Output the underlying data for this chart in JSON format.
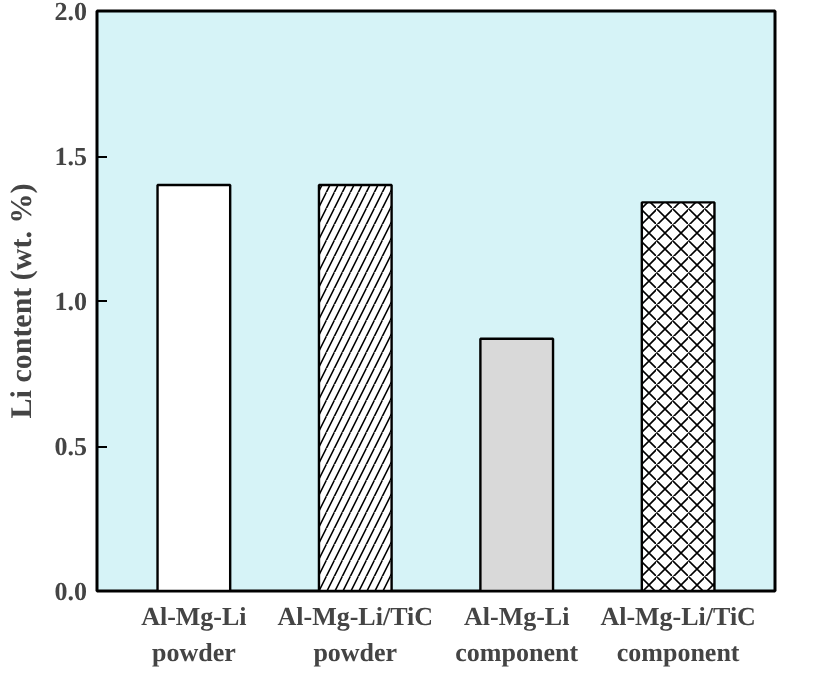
{
  "chart_data": {
    "type": "bar",
    "categories": [
      "Al-Mg-Li\npowder",
      "Al-Mg-Li/TiC\npowder",
      "Al-Mg-Li\ncomponent",
      "Al-Mg-Li/TiC\ncomponent"
    ],
    "values": [
      1.4,
      1.4,
      0.87,
      1.34
    ],
    "colors": [
      "#ffffff",
      "#ffffff",
      "#d9d9d9",
      "#ffffff"
    ],
    "ylabel": "Li content (wt. %)",
    "ylim": [
      0,
      2.0
    ],
    "yticks": [
      {
        "value": 0,
        "label": "0.0"
      },
      {
        "value": 0.5,
        "label": "0.5"
      },
      {
        "value": 1.0,
        "label": "1.0"
      },
      {
        "value": 1.5,
        "label": "1.5"
      },
      {
        "value": 2.0,
        "label": "2.0"
      }
    ],
    "grid": false
  }
}
